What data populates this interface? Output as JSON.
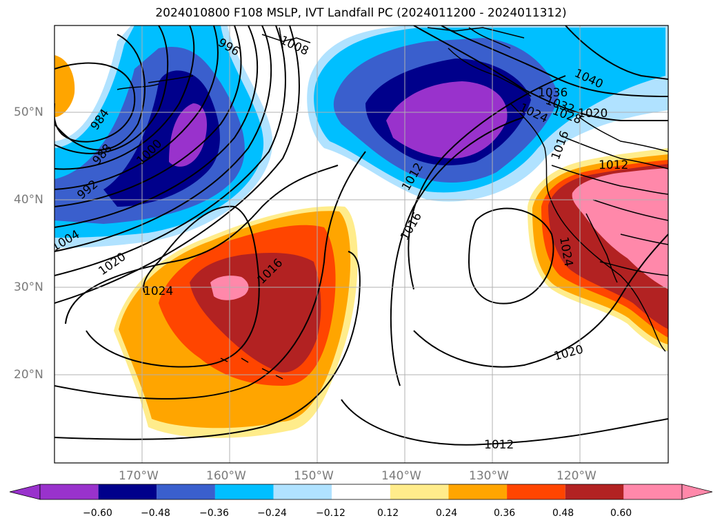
{
  "title": "2024010800 F108 MSLP, IVT Landfall PC (2024011200 - 2024011312)",
  "lat_labels": [
    "50°N",
    "40°N",
    "30°N",
    "20°N"
  ],
  "lon_labels": [
    "170°W",
    "160°W",
    "150°W",
    "140°W",
    "130°W",
    "120°W"
  ],
  "colorbar": {
    "colors": [
      "#9932cc",
      "#00008b",
      "#3a5fcd",
      "#00bfff",
      "#b0e2ff",
      "#ffffff",
      "#ffec8b",
      "#ffa500",
      "#ff4500",
      "#b22222",
      "#ff88aa"
    ],
    "tick_labels": [
      "−0.60",
      "−0.48",
      "−0.36",
      "−0.24",
      "−0.12",
      "0.12",
      "0.24",
      "0.36",
      "0.48",
      "0.60"
    ]
  },
  "isobar_labels": [
    "984",
    "988",
    "992",
    "1000",
    "1004",
    "1008",
    "996",
    "1020",
    "1024",
    "1016",
    "1012",
    "1016",
    "1020",
    "1024",
    "1016",
    "1012",
    "1012",
    "1020",
    "1024",
    "1032",
    "1036",
    "1040",
    "1028"
  ]
}
